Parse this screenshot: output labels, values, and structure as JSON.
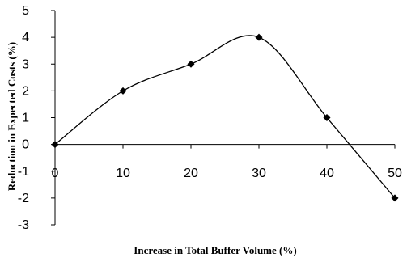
{
  "chart_data": {
    "type": "line",
    "title": "",
    "xlabel": "Increase in Total Buffer Volume (%)",
    "ylabel": "Reduction in Expected Costs (%)",
    "x": [
      0,
      10,
      20,
      30,
      40,
      50
    ],
    "series": [
      {
        "values": [
          0,
          2,
          3,
          4,
          1,
          -2
        ]
      }
    ],
    "xlim": [
      0,
      50
    ],
    "ylim": [
      -3,
      5
    ],
    "x_ticks": [
      "0",
      "10",
      "20",
      "30",
      "40",
      "50"
    ],
    "y_ticks": [
      "5",
      "4",
      "3",
      "2",
      "1",
      "0",
      "-1",
      "-2",
      "-3"
    ],
    "line_style": "smoothed",
    "marker": "diamond",
    "grid": false,
    "legend": "none",
    "colors": {
      "line": "#000000",
      "marker": "#000000"
    }
  }
}
